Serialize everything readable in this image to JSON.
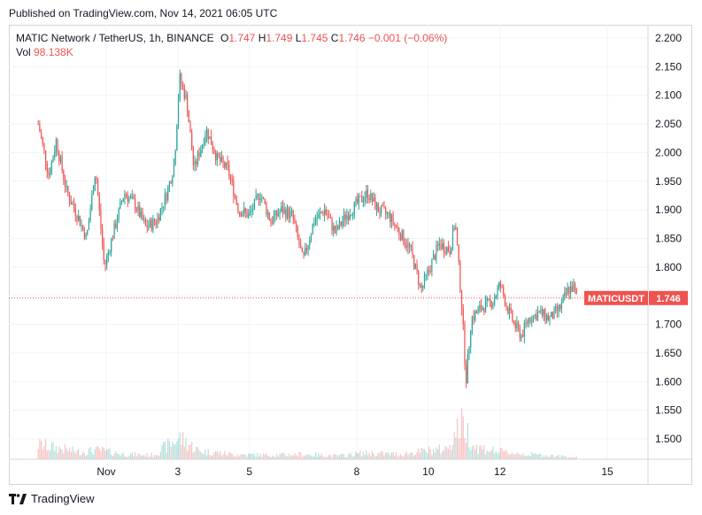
{
  "published": "Published on TradingView.com, Nov 14, 2021 06:05 UTC",
  "legend": {
    "symbol": "MATIC Network / TetherUS, 1h, BINANCE",
    "o_label": "O",
    "o_value": "1.747",
    "h_label": "H",
    "h_value": "1.749",
    "l_label": "L",
    "l_value": "1.745",
    "c_label": "C",
    "c_value": "1.746",
    "change": "−0.001 (−0.06%)",
    "vol_label": "Vol",
    "vol_value": "98.138K"
  },
  "price_tag": {
    "ticker": "MATICUSDT",
    "price": "1.746"
  },
  "footer": {
    "brand": "TradingView"
  },
  "colors": {
    "up": "#26a69a",
    "down": "#ef5350",
    "grid": "#f0f3fa",
    "axis_text": "#131722"
  },
  "chart_data": {
    "type": "candlestick",
    "y_axis": {
      "range": [
        1.46,
        2.22
      ],
      "ticks": [
        "2.200",
        "2.150",
        "2.100",
        "2.050",
        "2.000",
        "1.950",
        "1.900",
        "1.850",
        "1.800",
        "1.750",
        "1.700",
        "1.650",
        "1.600",
        "1.550",
        "1.500"
      ],
      "tick_values": [
        2.2,
        2.15,
        2.1,
        2.05,
        2.0,
        1.95,
        1.9,
        1.85,
        1.8,
        1.75,
        1.7,
        1.65,
        1.6,
        1.55,
        1.5
      ]
    },
    "x_axis": {
      "range_days": [
        30.1,
        46.5
      ],
      "ticks": [
        "Nov",
        "3",
        "5",
        "8",
        "10",
        "12",
        "15"
      ],
      "tick_days": [
        32,
        34,
        36,
        39,
        41,
        43,
        46
      ]
    },
    "last_price": 1.746,
    "price_path": [
      {
        "day": 30.1,
        "price": 2.05
      },
      {
        "day": 30.4,
        "price": 1.96
      },
      {
        "day": 30.6,
        "price": 2.02
      },
      {
        "day": 30.9,
        "price": 1.93
      },
      {
        "day": 31.2,
        "price": 1.89
      },
      {
        "day": 31.45,
        "price": 1.85
      },
      {
        "day": 31.7,
        "price": 1.97
      },
      {
        "day": 31.95,
        "price": 1.8
      },
      {
        "day": 32.2,
        "price": 1.86
      },
      {
        "day": 32.5,
        "price": 1.93
      },
      {
        "day": 32.8,
        "price": 1.91
      },
      {
        "day": 33.1,
        "price": 1.87
      },
      {
        "day": 33.4,
        "price": 1.88
      },
      {
        "day": 33.7,
        "price": 1.93
      },
      {
        "day": 33.9,
        "price": 1.98
      },
      {
        "day": 34.05,
        "price": 2.13
      },
      {
        "day": 34.25,
        "price": 2.09
      },
      {
        "day": 34.45,
        "price": 1.97
      },
      {
        "day": 34.8,
        "price": 2.04
      },
      {
        "day": 35.1,
        "price": 1.99
      },
      {
        "day": 35.4,
        "price": 1.97
      },
      {
        "day": 35.7,
        "price": 1.9
      },
      {
        "day": 36.0,
        "price": 1.89
      },
      {
        "day": 36.3,
        "price": 1.93
      },
      {
        "day": 36.6,
        "price": 1.88
      },
      {
        "day": 36.9,
        "price": 1.9
      },
      {
        "day": 37.2,
        "price": 1.89
      },
      {
        "day": 37.5,
        "price": 1.81
      },
      {
        "day": 37.8,
        "price": 1.88
      },
      {
        "day": 38.1,
        "price": 1.9
      },
      {
        "day": 38.4,
        "price": 1.86
      },
      {
        "day": 38.7,
        "price": 1.89
      },
      {
        "day": 39.0,
        "price": 1.91
      },
      {
        "day": 39.3,
        "price": 1.93
      },
      {
        "day": 39.6,
        "price": 1.9
      },
      {
        "day": 39.9,
        "price": 1.89
      },
      {
        "day": 40.2,
        "price": 1.86
      },
      {
        "day": 40.5,
        "price": 1.83
      },
      {
        "day": 40.8,
        "price": 1.76
      },
      {
        "day": 41.05,
        "price": 1.8
      },
      {
        "day": 41.3,
        "price": 1.84
      },
      {
        "day": 41.6,
        "price": 1.83
      },
      {
        "day": 41.75,
        "price": 1.88
      },
      {
        "day": 41.95,
        "price": 1.72
      },
      {
        "day": 42.05,
        "price": 1.6
      },
      {
        "day": 42.2,
        "price": 1.71
      },
      {
        "day": 42.5,
        "price": 1.73
      },
      {
        "day": 42.8,
        "price": 1.74
      },
      {
        "day": 43.0,
        "price": 1.77
      },
      {
        "day": 43.2,
        "price": 1.73
      },
      {
        "day": 43.4,
        "price": 1.7
      },
      {
        "day": 43.6,
        "price": 1.68
      },
      {
        "day": 43.8,
        "price": 1.71
      },
      {
        "day": 44.1,
        "price": 1.72
      },
      {
        "day": 44.4,
        "price": 1.71
      },
      {
        "day": 44.7,
        "price": 1.73
      },
      {
        "day": 44.9,
        "price": 1.76
      },
      {
        "day": 45.05,
        "price": 1.765
      },
      {
        "day": 45.15,
        "price": 1.746
      }
    ],
    "volume_path": [
      {
        "day": 30.1,
        "volume": 0.35
      },
      {
        "day": 30.6,
        "volume": 0.28
      },
      {
        "day": 31.2,
        "volume": 0.18
      },
      {
        "day": 31.8,
        "volume": 0.22
      },
      {
        "day": 32.5,
        "volume": 0.12
      },
      {
        "day": 33.3,
        "volume": 0.1
      },
      {
        "day": 34.05,
        "volume": 0.52
      },
      {
        "day": 34.6,
        "volume": 0.2
      },
      {
        "day": 35.5,
        "volume": 0.12
      },
      {
        "day": 36.5,
        "volume": 0.1
      },
      {
        "day": 37.5,
        "volume": 0.12
      },
      {
        "day": 38.5,
        "volume": 0.08
      },
      {
        "day": 39.2,
        "volume": 0.15
      },
      {
        "day": 40.2,
        "volume": 0.12
      },
      {
        "day": 40.9,
        "volume": 0.2
      },
      {
        "day": 41.5,
        "volume": 0.25
      },
      {
        "day": 41.95,
        "volume": 0.9
      },
      {
        "day": 42.3,
        "volume": 0.3
      },
      {
        "day": 43.0,
        "volume": 0.18
      },
      {
        "day": 43.8,
        "volume": 0.12
      },
      {
        "day": 44.6,
        "volume": 0.08
      },
      {
        "day": 45.15,
        "volume": 0.05
      }
    ]
  }
}
